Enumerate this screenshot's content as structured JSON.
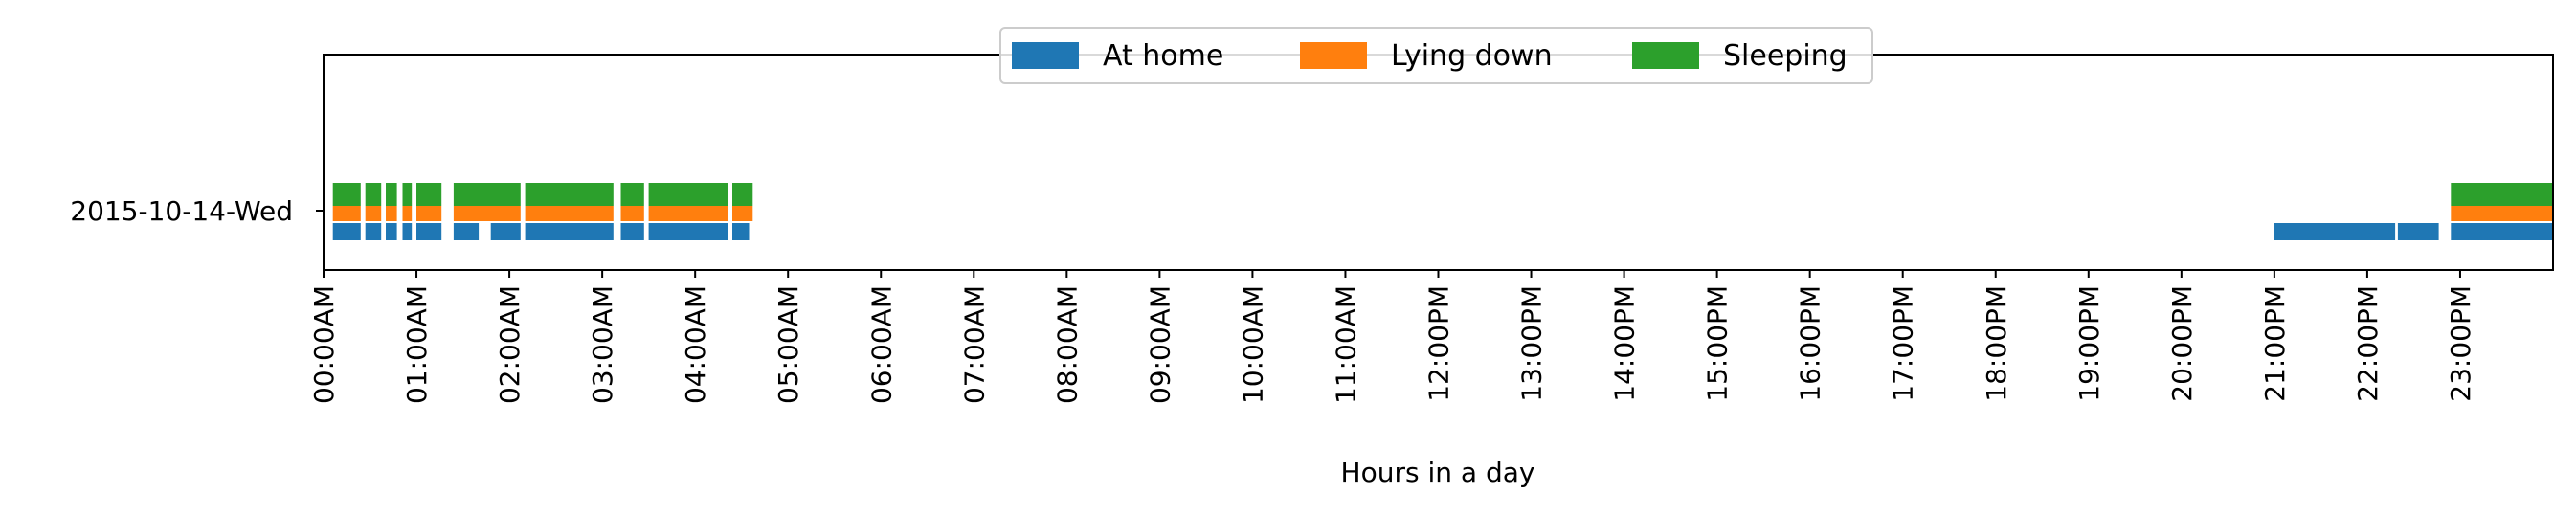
{
  "chart_data": {
    "type": "timeline",
    "xlabel": "Hours in a day",
    "ylabel": "",
    "xlim": [
      0,
      24
    ],
    "category": "2015-10-14-Wed",
    "x_tick_labels": [
      "00:00AM",
      "01:00AM",
      "02:00AM",
      "03:00AM",
      "04:00AM",
      "05:00AM",
      "06:00AM",
      "07:00AM",
      "08:00AM",
      "09:00AM",
      "10:00AM",
      "11:00AM",
      "12:00PM",
      "13:00PM",
      "14:00PM",
      "15:00PM",
      "16:00PM",
      "17:00PM",
      "18:00PM",
      "19:00PM",
      "20:00PM",
      "21:00PM",
      "22:00PM",
      "23:00PM"
    ],
    "legend_position": "top-center",
    "series": [
      {
        "name": "At home",
        "color": "#1f77b4",
        "intervals": [
          [
            0.1,
            0.4
          ],
          [
            0.45,
            0.62
          ],
          [
            0.67,
            0.79
          ],
          [
            0.85,
            0.95
          ],
          [
            1.0,
            1.27
          ],
          [
            1.4,
            1.67
          ],
          [
            1.8,
            2.12
          ],
          [
            2.17,
            3.12
          ],
          [
            3.2,
            3.45
          ],
          [
            3.5,
            4.35
          ],
          [
            4.4,
            4.58
          ],
          [
            21.0,
            22.3
          ],
          [
            22.33,
            22.77
          ],
          [
            22.9,
            24.0
          ]
        ]
      },
      {
        "name": "Lying down",
        "color": "#ff7f0e",
        "intervals": [
          [
            0.1,
            0.4
          ],
          [
            0.45,
            0.62
          ],
          [
            0.67,
            0.79
          ],
          [
            0.85,
            0.95
          ],
          [
            1.0,
            1.27
          ],
          [
            1.4,
            2.12
          ],
          [
            2.17,
            3.12
          ],
          [
            3.2,
            3.45
          ],
          [
            3.5,
            4.35
          ],
          [
            4.4,
            4.62
          ],
          [
            22.9,
            24.0
          ]
        ]
      },
      {
        "name": "Sleeping",
        "color": "#2ca02c",
        "intervals": [
          [
            0.1,
            0.4
          ],
          [
            0.45,
            0.62
          ],
          [
            0.67,
            0.79
          ],
          [
            0.85,
            0.95
          ],
          [
            1.0,
            1.27
          ],
          [
            1.4,
            2.12
          ],
          [
            2.17,
            3.12
          ],
          [
            3.2,
            3.45
          ],
          [
            3.5,
            4.35
          ],
          [
            4.4,
            4.62
          ],
          [
            22.9,
            24.0
          ]
        ]
      }
    ]
  }
}
